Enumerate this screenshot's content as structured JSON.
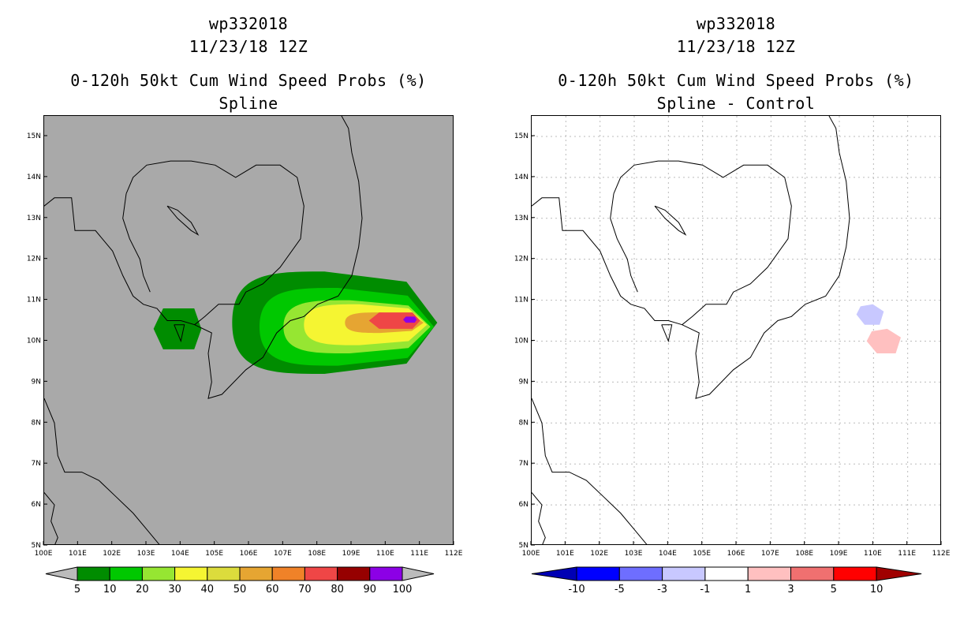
{
  "chart_data": [
    {
      "type": "heatmap",
      "storm_id": "wp332018",
      "datetime": "11/23/18 12Z",
      "title": "0-120h 50kt Cum Wind Speed Probs (%)",
      "subtitle": "Spline",
      "xlim": [
        100,
        112
      ],
      "ylim": [
        5,
        15.5
      ],
      "x_tick_labels": [
        "100E",
        "101E",
        "102E",
        "103E",
        "104E",
        "105E",
        "106E",
        "107E",
        "108E",
        "109E",
        "110E",
        "111E",
        "112E"
      ],
      "y_tick_labels": [
        "5N",
        "6N",
        "7N",
        "8N",
        "9N",
        "10N",
        "11N",
        "12N",
        "13N",
        "14N",
        "15N"
      ],
      "colorbar_levels": [
        "5",
        "10",
        "20",
        "30",
        "40",
        "50",
        "60",
        "70",
        "80",
        "90",
        "100"
      ],
      "colorbar_colors": [
        "#008c00",
        "#00c800",
        "#96e632",
        "#f5f532",
        "#dcdc3c",
        "#e6a532",
        "#f08228",
        "#ef4646",
        "#960000",
        "#8c00e6"
      ],
      "map_background": "#a9a9a9",
      "probability_max_location": {
        "lon": 110.5,
        "lat": 10.5
      },
      "contours": [
        {
          "level": 5,
          "lon_range": [
            105.5,
            111.5
          ],
          "lat_range": [
            9.2,
            11.7
          ]
        },
        {
          "level": 5,
          "lon_range": [
            103.2,
            104.6
          ],
          "lat_range": [
            9.8,
            10.8
          ]
        },
        {
          "level": 10,
          "lon_range": [
            106.3,
            111.4
          ],
          "lat_range": [
            9.4,
            11.3
          ]
        },
        {
          "level": 20,
          "lon_range": [
            107.0,
            111.3
          ],
          "lat_range": [
            9.7,
            11.0
          ]
        },
        {
          "level": 30,
          "lon_range": [
            107.6,
            111.2
          ],
          "lat_range": [
            9.9,
            10.9
          ]
        },
        {
          "level": 50,
          "lon_range": [
            108.8,
            111.1
          ],
          "lat_range": [
            10.2,
            10.7
          ]
        },
        {
          "level": 70,
          "lon_range": [
            109.5,
            111.0
          ],
          "lat_range": [
            10.3,
            10.7
          ]
        },
        {
          "level": 90,
          "lon_range": [
            110.5,
            110.9
          ],
          "lat_range": [
            10.45,
            10.6
          ]
        }
      ]
    },
    {
      "type": "heatmap",
      "storm_id": "wp332018",
      "datetime": "11/23/18 12Z",
      "title": "0-120h 50kt Cum Wind Speed Probs (%)",
      "subtitle": "Spline - Control",
      "xlim": [
        100,
        112
      ],
      "ylim": [
        5,
        15.5
      ],
      "x_tick_labels": [
        "100E",
        "101E",
        "102E",
        "103E",
        "104E",
        "105E",
        "106E",
        "107E",
        "108E",
        "109E",
        "110E",
        "111E",
        "112E"
      ],
      "y_tick_labels": [
        "5N",
        "6N",
        "7N",
        "8N",
        "9N",
        "10N",
        "11N",
        "12N",
        "13N",
        "14N",
        "15N"
      ],
      "colorbar_levels": [
        "-10",
        "-5",
        "-3",
        "-1",
        "1",
        "3",
        "5",
        "10"
      ],
      "colorbar_colors": [
        "#0000b4",
        "#0000ff",
        "#6e6eff",
        "#c8c8ff",
        "#ffffff",
        "#ffc0c0",
        "#f07070",
        "#ff0000",
        "#a00000"
      ],
      "difference_areas": [
        {
          "sign": "negative",
          "range": "-3 to -1",
          "lon_range": [
            109.5,
            110.3
          ],
          "lat_range": [
            10.4,
            10.9
          ]
        },
        {
          "sign": "positive",
          "range": "1 to 3",
          "lon_range": [
            109.8,
            110.8
          ],
          "lat_range": [
            9.7,
            10.3
          ]
        }
      ]
    }
  ]
}
